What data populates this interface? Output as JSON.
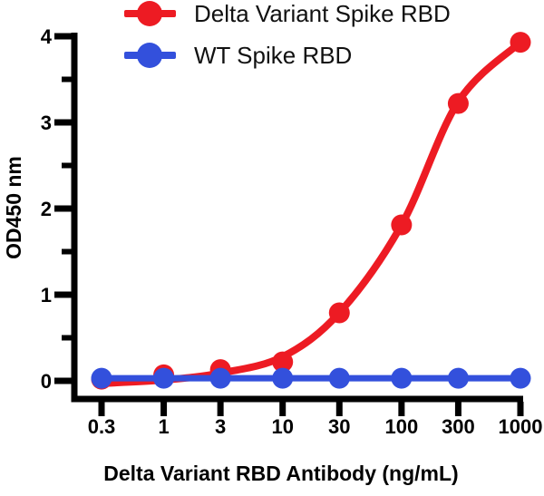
{
  "chart_data": {
    "type": "line",
    "title": "",
    "xlabel": "Delta Variant RBD Antibody (ng/mL)",
    "ylabel": "OD450 nm",
    "x_scale": "log",
    "xlim": [
      0.3,
      1000
    ],
    "ylim": [
      0,
      4
    ],
    "grid": false,
    "legend_position": "top-left",
    "background": "#ffffff",
    "axis_color": "#000000",
    "x": [
      0.3,
      1,
      3,
      10,
      30,
      100,
      300,
      1000
    ],
    "xtick_labels": [
      "0.3",
      "1",
      "3",
      "10",
      "30",
      "100",
      "300",
      "1000"
    ],
    "yticks": [
      0,
      1,
      2,
      3,
      4
    ],
    "ytick_labels": [
      "0",
      "1",
      "2",
      "3",
      "4"
    ],
    "yminor_ticks": [
      0.5,
      1.5,
      2.5,
      3.5
    ],
    "series": [
      {
        "name": "Delta Variant Spike RBD",
        "key": "delta-variant-spike-rbd",
        "color": "#ed1b23",
        "marker": "circle",
        "curve": "smooth",
        "x": [
          0.3,
          1,
          3,
          10,
          30,
          100,
          300,
          1000
        ],
        "y": [
          0.02,
          0.07,
          0.13,
          0.22,
          0.79,
          1.81,
          3.22,
          3.93
        ],
        "fit_curve": [
          [
            0.3,
            -0.03
          ],
          [
            1,
            0.01
          ],
          [
            3,
            0.09
          ],
          [
            10,
            0.28
          ],
          [
            30,
            0.79
          ],
          [
            100,
            1.81
          ],
          [
            300,
            3.24
          ],
          [
            1000,
            3.93
          ]
        ]
      },
      {
        "name": "WT Spike RBD",
        "key": "wt-spike-rbd",
        "color": "#3350dc",
        "marker": "circle",
        "curve": "straight",
        "x": [
          0.3,
          1,
          3,
          10,
          30,
          100,
          300,
          1000
        ],
        "y": [
          0.03,
          0.03,
          0.03,
          0.03,
          0.03,
          0.03,
          0.03,
          0.03
        ]
      }
    ]
  }
}
